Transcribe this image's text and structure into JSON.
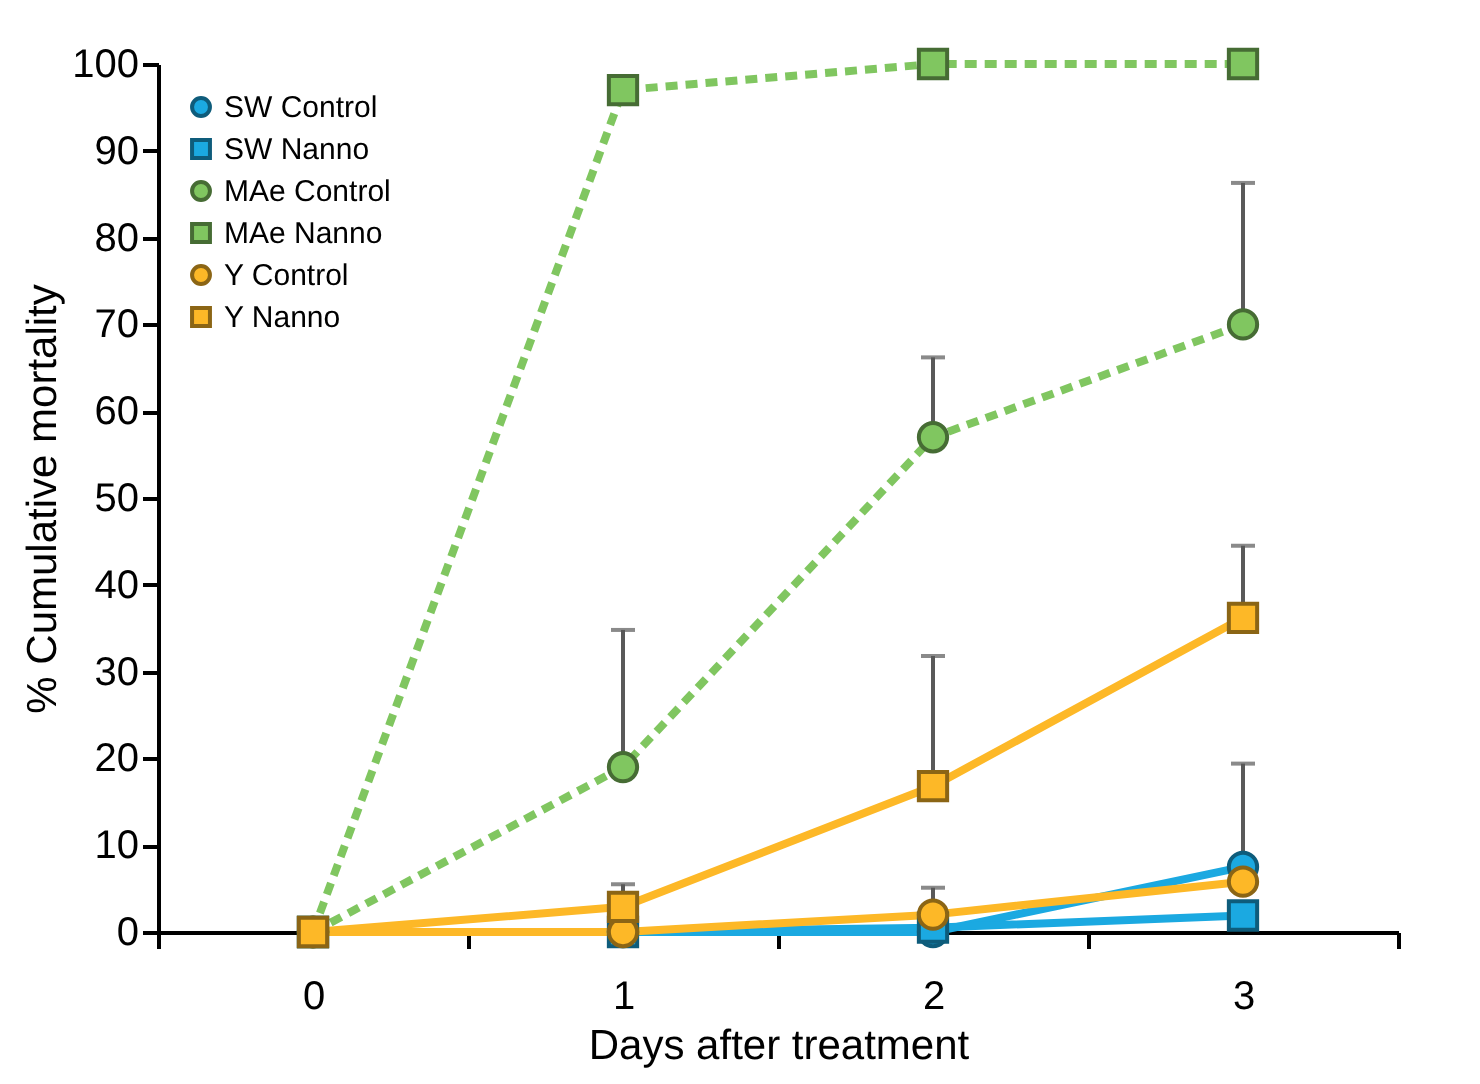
{
  "chart_data": {
    "type": "line",
    "xlabel": "Days after treatment",
    "ylabel": "% Cumulative mortality",
    "categories": [
      "0",
      "1",
      "2",
      "3"
    ],
    "ylim": [
      0,
      100
    ],
    "yticks": [
      0,
      10,
      20,
      30,
      40,
      50,
      60,
      70,
      80,
      90,
      100
    ],
    "grid": false,
    "legend": "top left",
    "series": [
      {
        "name": "SW Control",
        "color": "#1ba9e1",
        "marker": "circle",
        "line_style": "solid",
        "values": [
          0,
          0,
          0,
          7.5
        ],
        "errors": [
          null,
          null,
          null,
          [
            7.5,
            19.4
          ]
        ]
      },
      {
        "name": "SW Nanno",
        "color": "#1ba9e1",
        "marker": "square",
        "line_style": "solid",
        "values": [
          0,
          0,
          0.5,
          1.9
        ]
      },
      {
        "name": "MAe Control",
        "color": "#80c660",
        "marker": "circle",
        "line_style": "dashed",
        "values": [
          0,
          19,
          57,
          70
        ],
        "errors": [
          null,
          [
            19,
            34.8
          ],
          [
            57,
            66.2
          ],
          [
            70,
            86.3
          ]
        ]
      },
      {
        "name": "MAe Nanno",
        "color": "#80c660",
        "marker": "square",
        "line_style": "dashed",
        "values": [
          0,
          97,
          100,
          100
        ]
      },
      {
        "name": "Y Control",
        "color": "#fdb827",
        "marker": "circle",
        "line_style": "solid",
        "values": [
          0,
          0,
          2,
          5.8
        ],
        "errors": [
          null,
          null,
          [
            2,
            5.1
          ],
          null
        ]
      },
      {
        "name": "Y Nanno",
        "color": "#fdb827",
        "marker": "square",
        "line_style": "solid",
        "values": [
          0,
          2.9,
          16.8,
          36.2
        ],
        "errors": [
          null,
          [
            2.9,
            5.5
          ],
          [
            16.8,
            31.8
          ],
          [
            36.2,
            44.5
          ]
        ]
      }
    ]
  }
}
